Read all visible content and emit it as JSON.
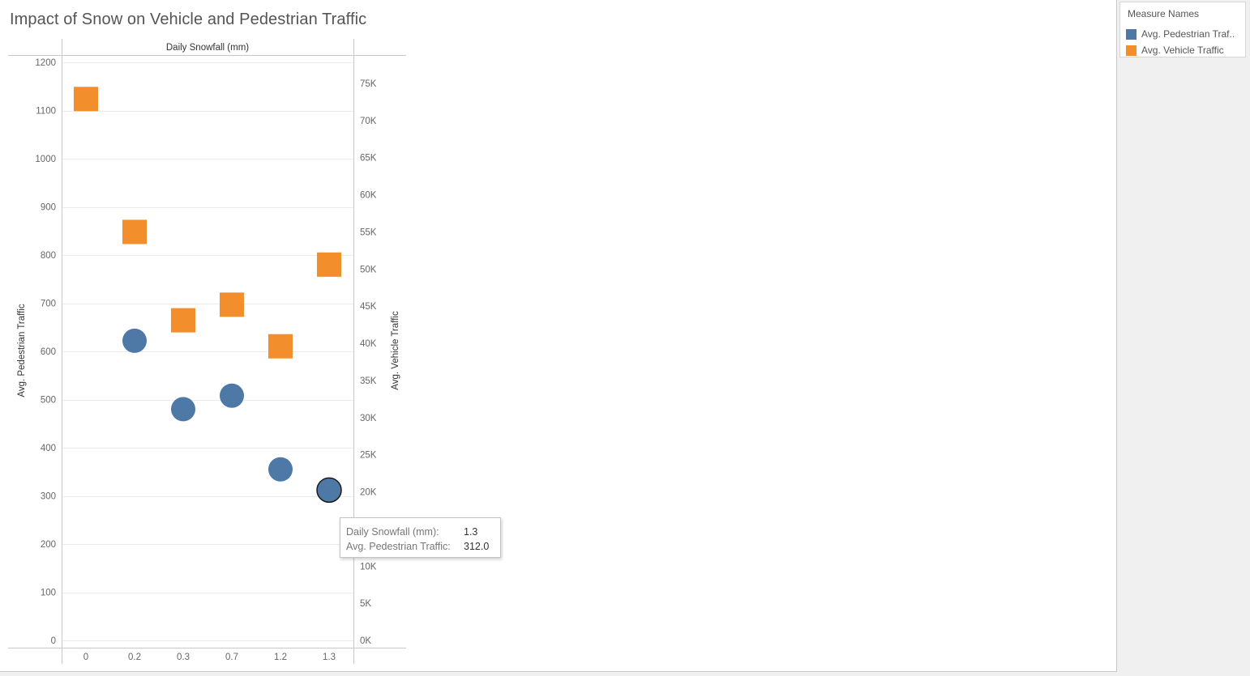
{
  "title": "Impact of Snow on Vehicle and Pedestrian Traffic",
  "legend": {
    "title": "Measure Names",
    "items": [
      {
        "label": "Avg. Pedestrian Traf..",
        "color": "#4e79a7",
        "shape": "square"
      },
      {
        "label": "Avg. Vehicle Traffic",
        "color": "#f28e2b",
        "shape": "square"
      }
    ]
  },
  "tooltip": {
    "rows": [
      {
        "key": "Daily Snowfall (mm):",
        "value": "1.3"
      },
      {
        "key": "Avg. Pedestrian Traffic:",
        "value": "312.0"
      }
    ]
  },
  "chart_data": {
    "type": "scatter",
    "title": "Impact of Snow on Vehicle and Pedestrian Traffic",
    "xlabel": "Daily Snowfall (mm)",
    "categories": [
      "0",
      "0.2",
      "0.3",
      "0.7",
      "1.2",
      "1.3"
    ],
    "left_axis": {
      "label": "Avg. Pedestrian Traffic",
      "range": [
        0,
        1200
      ],
      "ticks": [
        0,
        100,
        200,
        300,
        400,
        500,
        600,
        700,
        800,
        900,
        1000,
        1100,
        1200
      ],
      "tick_labels": [
        "0",
        "100",
        "200",
        "300",
        "400",
        "500",
        "600",
        "700",
        "800",
        "900",
        "1000",
        "1100",
        "1200"
      ]
    },
    "right_axis": {
      "label": "Avg. Vehicle Traffic",
      "range": [
        0,
        75000
      ],
      "ticks": [
        0,
        5000,
        10000,
        15000,
        20000,
        25000,
        30000,
        35000,
        40000,
        45000,
        50000,
        55000,
        60000,
        65000,
        70000,
        75000
      ],
      "tick_labels": [
        "0K",
        "5K",
        "10K",
        "15K",
        "20K",
        "25K",
        "30K",
        "35K",
        "40K",
        "45K",
        "50K",
        "55K",
        "60K",
        "65K",
        "70K",
        "75K"
      ]
    },
    "series": [
      {
        "name": "Avg. Pedestrian Traffic",
        "axis": "left",
        "marker": "circle",
        "color": "#4e79a7",
        "values": [
          null,
          622,
          480,
          508,
          355,
          312.0
        ]
      },
      {
        "name": "Avg. Vehicle Traffic",
        "axis": "right",
        "marker": "square",
        "color": "#f28e2b",
        "values": [
          72900,
          55000,
          43100,
          45200,
          39600,
          50600
        ]
      }
    ],
    "highlighted_point": {
      "series": "Avg. Pedestrian Traffic",
      "category": "1.3"
    },
    "grid": true,
    "legend_position": "top-right"
  }
}
